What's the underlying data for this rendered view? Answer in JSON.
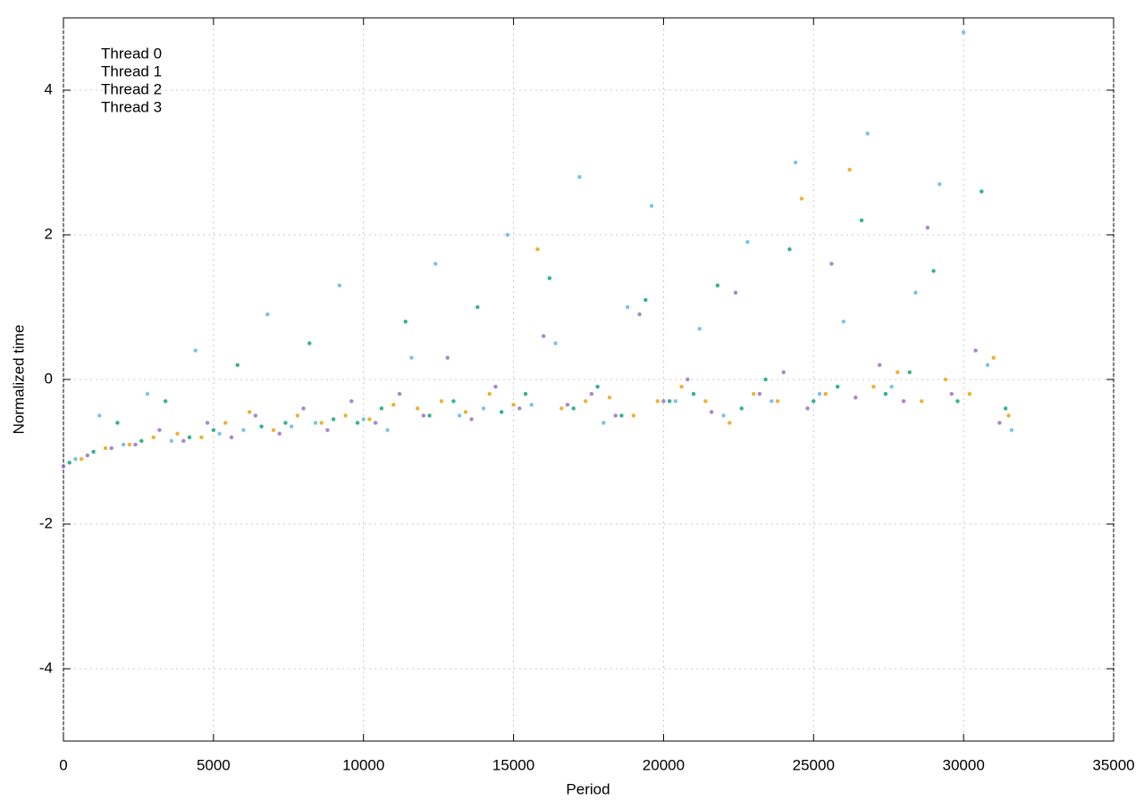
{
  "chart_data": {
    "type": "scatter",
    "xlabel": "Period",
    "ylabel": "Normalized time",
    "xlim": [
      0,
      35000
    ],
    "ylim": [
      -5,
      5
    ],
    "xticks": [
      0,
      5000,
      10000,
      15000,
      20000,
      25000,
      30000,
      35000
    ],
    "yticks": [
      -4,
      -2,
      0,
      2,
      4
    ],
    "grid": true,
    "legend": "upper left",
    "series": [
      {
        "name": "Thread 0",
        "color": "#9467bd",
        "x": [
          0,
          800,
          1600,
          2400,
          3200,
          4000,
          4800,
          5600,
          6400,
          7200,
          8000,
          8800,
          9600,
          10400,
          11200,
          12000,
          12800,
          13600,
          14400,
          15200,
          16000,
          16800,
          17600,
          18400,
          19200,
          20000,
          20800,
          21600,
          22400,
          23200,
          24000,
          24800,
          25600,
          26400,
          27200,
          28000,
          28800,
          29600,
          30400,
          31200
        ],
        "values": [
          -1.2,
          -1.05,
          -0.95,
          -0.9,
          -0.7,
          -0.85,
          -0.6,
          -0.8,
          -0.5,
          -0.75,
          -0.4,
          -0.7,
          -0.3,
          -0.6,
          -0.2,
          -0.5,
          0.3,
          -0.55,
          -0.1,
          -0.4,
          0.6,
          -0.35,
          -0.2,
          -0.5,
          0.9,
          -0.3,
          0.0,
          -0.45,
          1.2,
          -0.2,
          0.1,
          -0.4,
          1.6,
          -0.25,
          0.2,
          -0.3,
          2.1,
          -0.2,
          0.4,
          -0.6
        ]
      },
      {
        "name": "Thread 1",
        "color": "#009e73",
        "x": [
          200,
          1000,
          1800,
          2600,
          3400,
          4200,
          5000,
          5800,
          6600,
          7400,
          8200,
          9000,
          9800,
          10600,
          11400,
          12200,
          13000,
          13800,
          14600,
          15400,
          16200,
          17000,
          17800,
          18600,
          19400,
          20200,
          21000,
          21800,
          22600,
          23400,
          24200,
          25000,
          25800,
          26600,
          27400,
          28200,
          29000,
          29800,
          30600,
          31400
        ],
        "values": [
          -1.15,
          -1.0,
          -0.6,
          -0.85,
          -0.3,
          -0.8,
          -0.7,
          0.2,
          -0.65,
          -0.6,
          0.5,
          -0.55,
          -0.6,
          -0.4,
          0.8,
          -0.5,
          -0.3,
          1.0,
          -0.45,
          -0.2,
          1.4,
          -0.4,
          -0.1,
          -0.5,
          1.1,
          -0.3,
          -0.2,
          1.3,
          -0.4,
          0.0,
          1.8,
          -0.3,
          -0.1,
          2.2,
          -0.2,
          0.1,
          1.5,
          -0.3,
          2.6,
          -0.4
        ]
      },
      {
        "name": "Thread 2",
        "color": "#56b4e9",
        "x": [
          400,
          1200,
          2000,
          2800,
          3600,
          4400,
          5200,
          6000,
          6800,
          7600,
          8400,
          9200,
          10000,
          10800,
          11600,
          12400,
          13200,
          14000,
          14800,
          15600,
          16400,
          17200,
          18000,
          18800,
          19600,
          20400,
          21200,
          22000,
          22800,
          23600,
          24400,
          25200,
          26000,
          26800,
          27600,
          28400,
          29200,
          30000,
          30800,
          31600
        ],
        "values": [
          -1.1,
          -0.5,
          -0.9,
          -0.2,
          -0.85,
          0.4,
          -0.75,
          -0.7,
          0.9,
          -0.65,
          -0.6,
          1.3,
          -0.55,
          -0.7,
          0.3,
          1.6,
          -0.5,
          -0.4,
          2.0,
          -0.35,
          0.5,
          2.8,
          -0.6,
          1.0,
          2.4,
          -0.3,
          0.7,
          -0.5,
          1.9,
          -0.3,
          3.0,
          -0.2,
          0.8,
          3.4,
          -0.1,
          1.2,
          2.7,
          4.8,
          0.2,
          -0.7
        ]
      },
      {
        "name": "Thread 3",
        "color": "#e69f00",
        "x": [
          600,
          1400,
          2200,
          3000,
          3800,
          4600,
          5400,
          6200,
          7000,
          7800,
          8600,
          9400,
          10200,
          11000,
          11800,
          12600,
          13400,
          14200,
          15000,
          15800,
          16600,
          17400,
          18200,
          19000,
          19800,
          20600,
          21400,
          22200,
          23000,
          23800,
          24600,
          25400,
          26200,
          27000,
          27800,
          28600,
          29400,
          30200,
          31000,
          31500
        ],
        "values": [
          -1.1,
          -0.95,
          -0.9,
          -0.8,
          -0.75,
          -0.8,
          -0.6,
          -0.45,
          -0.7,
          -0.5,
          -0.6,
          -0.5,
          -0.55,
          -0.35,
          -0.4,
          -0.3,
          -0.45,
          -0.2,
          -0.35,
          1.8,
          -0.4,
          -0.3,
          -0.25,
          -0.5,
          -0.3,
          -0.1,
          -0.3,
          -0.6,
          -0.2,
          -0.3,
          2.5,
          -0.2,
          2.9,
          -0.1,
          0.1,
          -0.3,
          0.0,
          -0.2,
          0.3,
          -0.5
        ]
      }
    ]
  }
}
